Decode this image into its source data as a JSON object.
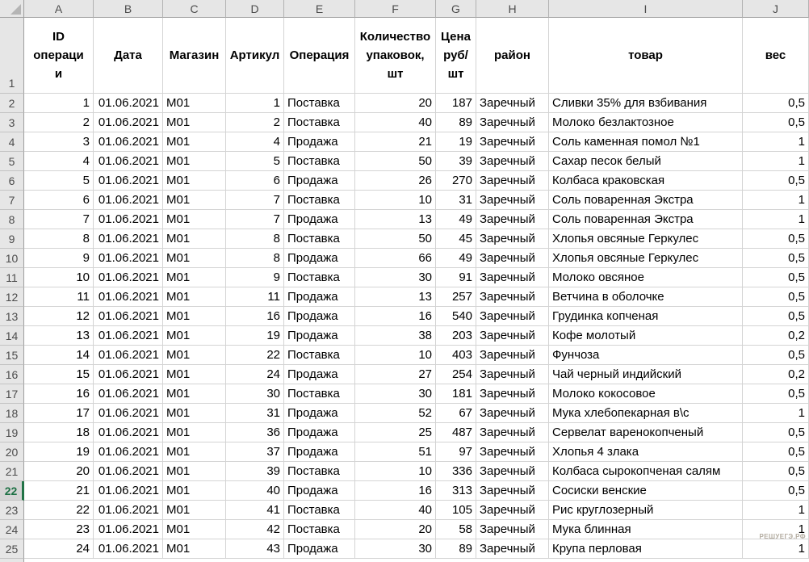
{
  "sheet": {
    "column_letters": [
      "A",
      "B",
      "C",
      "D",
      "E",
      "F",
      "G",
      "H",
      "I",
      "J"
    ],
    "header_row": {
      "number": 1,
      "cells": [
        "ID\nопераци\nи",
        "Дата",
        "Магазин",
        "Артикул",
        "Операция",
        "Количество\nупаковок,\nшт",
        "Цена\nруб/\nшт",
        "район",
        "товар",
        "вес"
      ]
    },
    "active_row": 22,
    "rows": [
      {
        "n": 2,
        "cells": [
          "1",
          "01.06.2021",
          "М01",
          "1",
          "Поставка",
          "20",
          "187",
          "Заречный",
          "Сливки 35% для взбивания",
          "0,5"
        ]
      },
      {
        "n": 3,
        "cells": [
          "2",
          "01.06.2021",
          "М01",
          "2",
          "Поставка",
          "40",
          "89",
          "Заречный",
          "Молоко безлактозное",
          "0,5"
        ]
      },
      {
        "n": 4,
        "cells": [
          "3",
          "01.06.2021",
          "М01",
          "4",
          "Продажа",
          "21",
          "19",
          "Заречный",
          "Соль каменная помол №1",
          "1"
        ]
      },
      {
        "n": 5,
        "cells": [
          "4",
          "01.06.2021",
          "М01",
          "5",
          "Поставка",
          "50",
          "39",
          "Заречный",
          "Сахар песок белый",
          "1"
        ]
      },
      {
        "n": 6,
        "cells": [
          "5",
          "01.06.2021",
          "М01",
          "6",
          "Продажа",
          "26",
          "270",
          "Заречный",
          "Колбаса краковская",
          "0,5"
        ]
      },
      {
        "n": 7,
        "cells": [
          "6",
          "01.06.2021",
          "М01",
          "7",
          "Поставка",
          "10",
          "31",
          "Заречный",
          "Соль поваренная Экстра",
          "1"
        ]
      },
      {
        "n": 8,
        "cells": [
          "7",
          "01.06.2021",
          "М01",
          "7",
          "Продажа",
          "13",
          "49",
          "Заречный",
          "Соль поваренная Экстра",
          "1"
        ]
      },
      {
        "n": 9,
        "cells": [
          "8",
          "01.06.2021",
          "М01",
          "8",
          "Поставка",
          "50",
          "45",
          "Заречный",
          "Хлопья овсяные Геркулес",
          "0,5"
        ]
      },
      {
        "n": 10,
        "cells": [
          "9",
          "01.06.2021",
          "М01",
          "8",
          "Продажа",
          "66",
          "49",
          "Заречный",
          "Хлопья овсяные Геркулес",
          "0,5"
        ]
      },
      {
        "n": 11,
        "cells": [
          "10",
          "01.06.2021",
          "М01",
          "9",
          "Поставка",
          "30",
          "91",
          "Заречный",
          "Молоко овсяное",
          "0,5"
        ]
      },
      {
        "n": 12,
        "cells": [
          "11",
          "01.06.2021",
          "М01",
          "11",
          "Продажа",
          "13",
          "257",
          "Заречный",
          "Ветчина в оболочке",
          "0,5"
        ]
      },
      {
        "n": 13,
        "cells": [
          "12",
          "01.06.2021",
          "М01",
          "16",
          "Продажа",
          "16",
          "540",
          "Заречный",
          "Грудинка копченая",
          "0,5"
        ]
      },
      {
        "n": 14,
        "cells": [
          "13",
          "01.06.2021",
          "М01",
          "19",
          "Продажа",
          "38",
          "203",
          "Заречный",
          "Кофе молотый",
          "0,2"
        ]
      },
      {
        "n": 15,
        "cells": [
          "14",
          "01.06.2021",
          "М01",
          "22",
          "Поставка",
          "10",
          "403",
          "Заречный",
          "Фунчоза",
          "0,5"
        ]
      },
      {
        "n": 16,
        "cells": [
          "15",
          "01.06.2021",
          "М01",
          "24",
          "Продажа",
          "27",
          "254",
          "Заречный",
          "Чай черный индийский",
          "0,2"
        ]
      },
      {
        "n": 17,
        "cells": [
          "16",
          "01.06.2021",
          "М01",
          "30",
          "Поставка",
          "30",
          "181",
          "Заречный",
          "Молоко кокосовое",
          "0,5"
        ]
      },
      {
        "n": 18,
        "cells": [
          "17",
          "01.06.2021",
          "М01",
          "31",
          "Продажа",
          "52",
          "67",
          "Заречный",
          "Мука хлебопекарная в\\с",
          "1"
        ]
      },
      {
        "n": 19,
        "cells": [
          "18",
          "01.06.2021",
          "М01",
          "36",
          "Продажа",
          "25",
          "487",
          "Заречный",
          "Сервелат варенокопченый",
          "0,5"
        ]
      },
      {
        "n": 20,
        "cells": [
          "19",
          "01.06.2021",
          "М01",
          "37",
          "Продажа",
          "51",
          "97",
          "Заречный",
          "Хлопья 4 злака",
          "0,5"
        ]
      },
      {
        "n": 21,
        "cells": [
          "20",
          "01.06.2021",
          "М01",
          "39",
          "Поставка",
          "10",
          "336",
          "Заречный",
          "Колбаса сырокопченая салям",
          "0,5"
        ]
      },
      {
        "n": 22,
        "cells": [
          "21",
          "01.06.2021",
          "М01",
          "40",
          "Продажа",
          "16",
          "313",
          "Заречный",
          "Сосиски венские",
          "0,5"
        ]
      },
      {
        "n": 23,
        "cells": [
          "22",
          "01.06.2021",
          "М01",
          "41",
          "Поставка",
          "40",
          "105",
          "Заречный",
          "Рис круглозерный",
          "1"
        ]
      },
      {
        "n": 24,
        "cells": [
          "23",
          "01.06.2021",
          "М01",
          "42",
          "Поставка",
          "20",
          "58",
          "Заречный",
          "Мука блинная",
          "1"
        ]
      },
      {
        "n": 25,
        "cells": [
          "24",
          "01.06.2021",
          "М01",
          "43",
          "Продажа",
          "30",
          "89",
          "Заречный",
          "Крупа перловая",
          "1"
        ]
      }
    ],
    "watermark": "РЕШУЕГЭ.РФ",
    "colors": {
      "header_bg": "#e6e6e6",
      "active_green": "#217346",
      "gridline": "#d4d4d4"
    }
  }
}
